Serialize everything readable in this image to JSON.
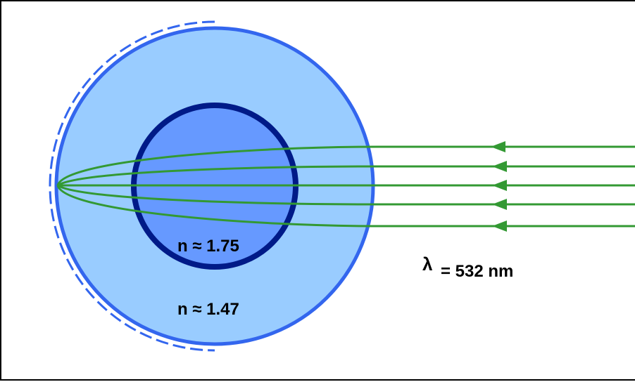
{
  "diagram": {
    "labels": {
      "core_index": "n ≈ 1.75",
      "shell_index": "n ≈ 1.47",
      "wavelength_symbol": "λ",
      "wavelength_value": "= 532 nm"
    },
    "colors": {
      "shell_fill": "#99ccff",
      "shell_stroke": "#3366ee",
      "core_fill": "#6699ff",
      "core_stroke": "#001a88",
      "ray": "#339933",
      "frame": "#000000"
    },
    "ray_count": 5
  }
}
